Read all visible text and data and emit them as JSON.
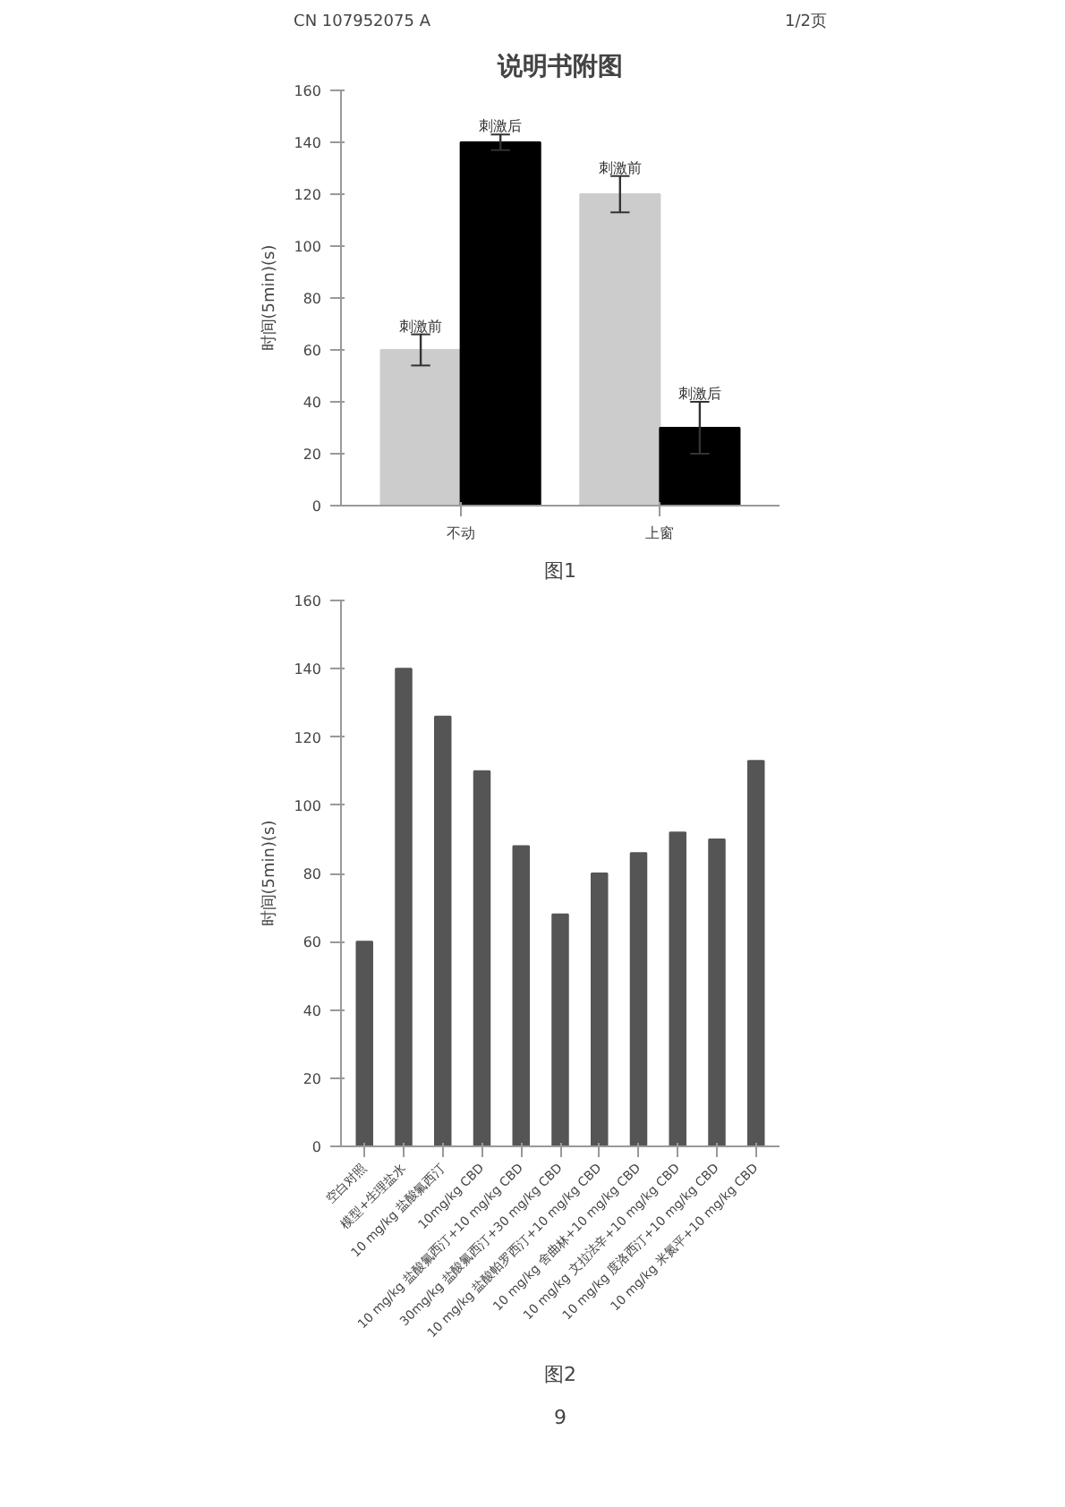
{
  "chart_data": [
    {
      "type": "bar",
      "title": "说明书附图",
      "ylabel": "时间(5min)(s)",
      "categories": [
        "不动",
        "上窗"
      ],
      "series": [
        {
          "name": "刺激前",
          "color": "#cccccc",
          "values": [
            60,
            120
          ],
          "errors": [
            6,
            7
          ]
        },
        {
          "name": "刺激后",
          "color": "#000000",
          "values": [
            140,
            30
          ],
          "errors": [
            3,
            10
          ]
        }
      ],
      "ylim": [
        0,
        160
      ],
      "yticks": [
        0,
        20,
        40,
        60,
        80,
        100,
        120,
        140,
        160
      ],
      "grid": false,
      "annotations": [
        "CN 107952075 A",
        "1/2页",
        "图1"
      ]
    },
    {
      "type": "bar",
      "ylabel": "时间(5min)(s)",
      "categories": [
        "空白对照",
        "模型+生理盐水",
        "10 mg/kg 盐酸氟西汀",
        "10mg/kg CBD",
        "10 mg/kg 盐酸氟西汀+10 mg/kg CBD",
        "30mg/kg 盐酸氟西汀+30 mg/kg CBD",
        "10 mg/kg 盐酸帕罗西汀+10 mg/kg CBD",
        "10 mg/kg 舍曲林+10 mg/kg CBD",
        "10 mg/kg 文拉法辛+10 mg/kg CBD",
        "10 mg/kg 度洛西汀+10 mg/kg CBD",
        "10 mg/kg 米氮平+10 mg/kg CBD"
      ],
      "series": [
        {
          "color": "#555555",
          "values": [
            60,
            140,
            126,
            110,
            88,
            68,
            80,
            86,
            92,
            90,
            113
          ]
        }
      ],
      "ylim": [
        0,
        160
      ],
      "yticks": [
        0,
        20,
        40,
        60,
        80,
        100,
        120,
        140,
        160
      ],
      "grid": false,
      "annotations": [
        "图2",
        "9"
      ]
    }
  ]
}
